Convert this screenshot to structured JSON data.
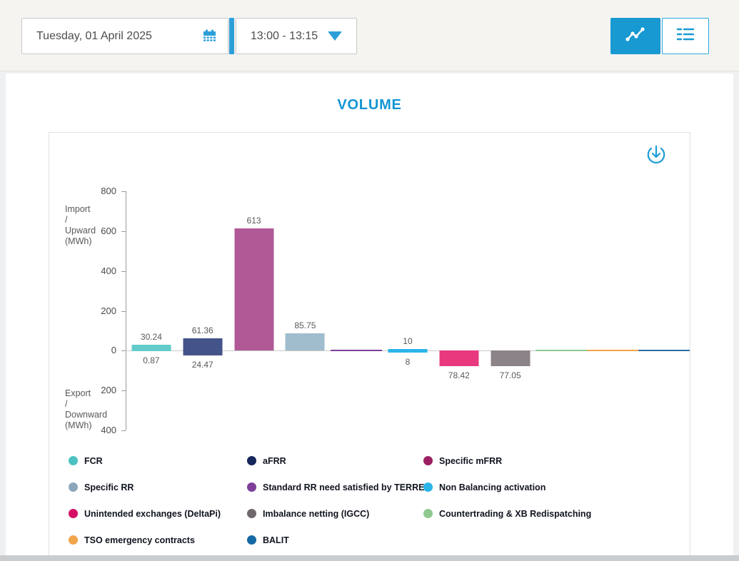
{
  "header": {
    "date_label": "Tuesday, 01 April 2025",
    "time_label": "13:00 - 13:15"
  },
  "main": {
    "title": "VOLUME"
  },
  "colors": {
    "accent": "#1e9cd7",
    "active_toggle": "#1899d2"
  },
  "chart_data": {
    "type": "bar",
    "title": "VOLUME",
    "y_axis": {
      "top_label": "Import\n/\nUpward\n(MWh)",
      "bottom_label": "Export\n/\nDownward\n(MWh)",
      "ticks": [
        800,
        600,
        400,
        200,
        0,
        -200,
        -400
      ],
      "tick_display": [
        "800",
        "600",
        "400",
        "200",
        "0",
        "200",
        "400"
      ],
      "ylim": [
        -400,
        800
      ],
      "unit": "MWh"
    },
    "series": [
      {
        "name": "FCR",
        "legend_color": "#4BC2C2",
        "bar_color": "#63CBC9",
        "positive": 30.24,
        "negative": 0.87,
        "positive_label": "30.24",
        "negative_label": "0.87"
      },
      {
        "name": "aFRR",
        "legend_color": "#17265C",
        "bar_color": "#44548A",
        "positive": 61.36,
        "negative": 24.47,
        "positive_label": "61.36",
        "negative_label": "24.47"
      },
      {
        "name": "Specific mFRR",
        "legend_color": "#9B1F63",
        "bar_color": "#B15996",
        "positive": 613,
        "negative": 0,
        "positive_label": "613",
        "negative_label": ""
      },
      {
        "name": "Specific RR",
        "legend_color": "#8CA7BA",
        "bar_color": "#A0BDCE",
        "positive": 85.75,
        "negative": 0,
        "positive_label": "85.75",
        "negative_label": ""
      },
      {
        "name": "Standard RR need satisfied by TERRE",
        "legend_color": "#7D3F98",
        "bar_color": "#7D3F98",
        "positive": 0,
        "negative": 0,
        "positive_label": "",
        "negative_label": ""
      },
      {
        "name": "Non Balancing activation",
        "legend_color": "#29B5E8",
        "bar_color": "#29B5E8",
        "positive": 10,
        "negative": 8,
        "positive_label": "10",
        "negative_label": "8"
      },
      {
        "name": "Unintended exchanges (DeltaPi)",
        "legend_color": "#D60F66",
        "bar_color": "#E8397F",
        "positive": 0,
        "negative": 78.42,
        "positive_label": "",
        "negative_label": "78.42"
      },
      {
        "name": "Imbalance netting (IGCC)",
        "legend_color": "#6E686D",
        "bar_color": "#8C8388",
        "positive": 0,
        "negative": 77.05,
        "positive_label": "",
        "negative_label": "77.05"
      },
      {
        "name": "Countertrading & XB Redispatching",
        "legend_color": "#8FC98F",
        "bar_color": "#8FC98F",
        "positive": 0,
        "negative": 0,
        "positive_label": "",
        "negative_label": ""
      },
      {
        "name": "TSO emergency contracts",
        "legend_color": "#F2A44D",
        "bar_color": "#F2A44D",
        "positive": 0,
        "negative": 0,
        "positive_label": "",
        "negative_label": ""
      },
      {
        "name": "BALIT",
        "legend_color": "#1568A6",
        "bar_color": "#2A6FA5",
        "positive": 0,
        "negative": 0,
        "positive_label": "",
        "negative_label": ""
      }
    ]
  }
}
